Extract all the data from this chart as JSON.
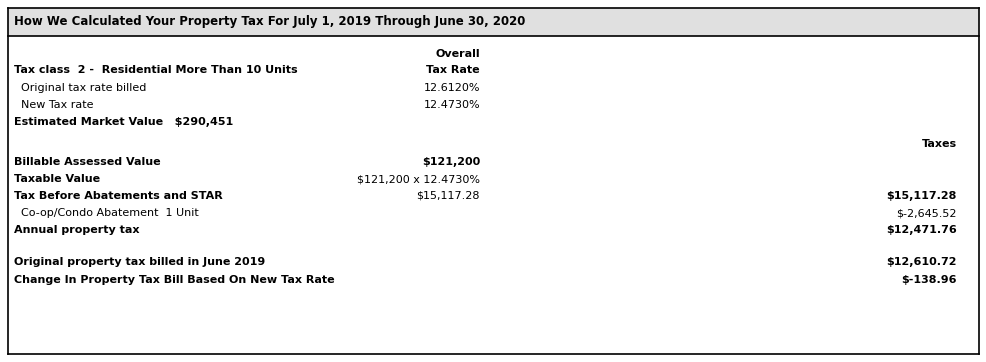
{
  "title": "How We Calculated Your Property Tax For July 1, 2019 Through June 30, 2020",
  "header_bg": "#e0e0e0",
  "bg_color": "#ffffff",
  "border_color": "#000000",
  "font_size_title": 8.5,
  "font_size_body": 8.0,
  "rows": [
    {
      "label": "Tax class  2 -  Residential More Than 10 Units",
      "bold": true,
      "col2": "",
      "col2_bold": false,
      "col3": "",
      "col3_bold": false
    },
    {
      "label": "  Original tax rate billed",
      "bold": false,
      "col2": "12.6120%",
      "col2_bold": false,
      "col3": "",
      "col3_bold": false
    },
    {
      "label": "  New Tax rate",
      "bold": false,
      "col2": "12.4730%",
      "col2_bold": false,
      "col3": "",
      "col3_bold": false
    },
    {
      "label": "Estimated Market Value   $290,451",
      "bold": true,
      "col2": "",
      "col2_bold": false,
      "col3": "",
      "col3_bold": false
    },
    {
      "label": "",
      "bold": false,
      "col2": "",
      "col2_bold": false,
      "col3": "Taxes",
      "col3_bold": true,
      "spacer": true
    },
    {
      "label": "Billable Assessed Value",
      "bold": true,
      "col2": "$121,200",
      "col2_bold": true,
      "col3": "",
      "col3_bold": false
    },
    {
      "label": "Taxable Value",
      "bold": true,
      "col2": "$121,200 x 12.4730%",
      "col2_bold": false,
      "col3": "",
      "col3_bold": false
    },
    {
      "label": "Tax Before Abatements and STAR",
      "bold": true,
      "col2": "$15,117.28",
      "col2_bold": false,
      "col3": "$15,117.28",
      "col3_bold": true
    },
    {
      "label": "  Co-op/Condo Abatement  1 Unit",
      "bold": false,
      "col2": "",
      "col2_bold": false,
      "col3": "$-2,645.52",
      "col3_bold": false
    },
    {
      "label": "Annual property tax",
      "bold": true,
      "col2": "",
      "col2_bold": false,
      "col3": "$12,471.76",
      "col3_bold": true
    },
    {
      "label": "",
      "bold": false,
      "col2": "",
      "col2_bold": false,
      "col3": "",
      "col3_bold": false,
      "spacer": true
    },
    {
      "label": "Original property tax billed in June 2019",
      "bold": true,
      "col2": "",
      "col2_bold": false,
      "col3": "$12,610.72",
      "col3_bold": true
    },
    {
      "label": "Change In Property Tax Bill Based On New Tax Rate",
      "bold": true,
      "col2": "",
      "col2_bold": false,
      "col3": "$-138.96",
      "col3_bold": true
    }
  ]
}
